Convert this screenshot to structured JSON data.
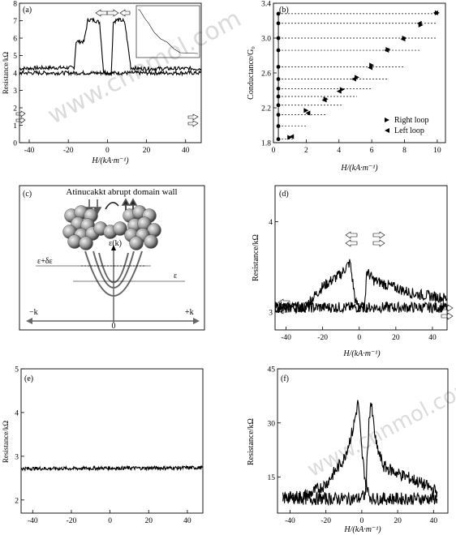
{
  "chart_data": [
    {
      "panel": "a",
      "type": "line",
      "panel_label": "(a)",
      "xlabel": "H/(kA·m⁻¹)",
      "ylabel": "Resistance/kΩ",
      "xlim": [
        -45,
        48
      ],
      "ylim": [
        0,
        8
      ],
      "xticks": [
        -40,
        -20,
        0,
        20,
        40
      ],
      "yticks": [
        0,
        1,
        2,
        3,
        4,
        5,
        6,
        7,
        8
      ],
      "series": [
        {
          "x": [
            -45,
            -30,
            -20,
            -17,
            -16,
            -12,
            -10,
            -8,
            -6,
            -4,
            -2,
            0,
            4,
            8,
            20,
            48
          ],
          "y": [
            4.25,
            4.3,
            4.3,
            4.3,
            5.8,
            5.8,
            7.05,
            7.05,
            7.0,
            6.9,
            4.1,
            4.0,
            4.0,
            4.0,
            4.0,
            4.0
          ]
        },
        {
          "x": [
            -45,
            -20,
            -10,
            -4,
            2,
            3,
            5,
            8,
            9,
            12,
            16,
            20,
            48
          ],
          "y": [
            4.0,
            4.0,
            4.0,
            4.0,
            4.0,
            6.9,
            7.05,
            7.0,
            6.8,
            4.3,
            4.25,
            4.25,
            4.25
          ]
        }
      ]
    },
    {
      "panel": "b",
      "type": "scatter",
      "panel_label": "(b)",
      "xlabel": "H/(kA·m⁻¹)",
      "ylabel": "Conductance/G₀",
      "xlim": [
        0,
        10.5
      ],
      "ylim": [
        1.8,
        3.4
      ],
      "xticks": [
        0,
        2,
        4,
        6,
        8,
        10
      ],
      "yticks": [
        1.8,
        2.2,
        2.6,
        3.0,
        3.4
      ],
      "levels": [
        1.84,
        1.99,
        2.12,
        2.23,
        2.33,
        2.42,
        2.53,
        2.67,
        2.86,
        3.0,
        3.17,
        3.28
      ],
      "series": [
        {
          "name": "Right loop",
          "x": [
            1.0,
            2.0,
            3.2,
            4.2,
            5.1,
            6.0,
            7.0,
            8.0,
            9.0,
            10.0
          ],
          "y": [
            1.86,
            2.17,
            2.3,
            2.41,
            2.55,
            2.69,
            2.87,
            3.0,
            3.15,
            3.29
          ]
        },
        {
          "name": "Left loop",
          "x": [
            1.1,
            2.1,
            3.1,
            4.0,
            4.9,
            5.9,
            6.9,
            7.9,
            8.9,
            9.9
          ],
          "y": [
            1.87,
            2.14,
            2.29,
            2.39,
            2.53,
            2.66,
            2.86,
            2.99,
            3.17,
            3.29
          ]
        }
      ],
      "legend": "bottom-right"
    },
    {
      "panel": "d",
      "type": "line",
      "panel_label": "(d)",
      "xlabel": "H/(kA·m⁻¹)",
      "ylabel": "Resistance/kΩ",
      "xlim": [
        -46,
        48
      ],
      "ylim": [
        2.8,
        4.4
      ],
      "xticks": [
        -40,
        -20,
        0,
        20,
        40
      ],
      "yticks": [
        3,
        4
      ],
      "series": [
        {
          "x": [
            -46,
            -30,
            -20,
            -10,
            -5,
            -2,
            2,
            48
          ],
          "y": [
            3.05,
            3.05,
            3.28,
            3.42,
            3.55,
            3.1,
            3.05,
            3.05
          ]
        },
        {
          "x": [
            -46,
            0,
            3,
            4,
            8,
            15,
            30,
            48
          ],
          "y": [
            3.05,
            3.05,
            3.05,
            3.45,
            3.35,
            3.3,
            3.2,
            3.15
          ]
        }
      ]
    },
    {
      "panel": "e",
      "type": "line",
      "panel_label": "(e)",
      "xlabel": "",
      "ylabel": "Resistance/kΩ",
      "xlim": [
        -46,
        48
      ],
      "ylim": [
        1.7,
        5
      ],
      "xticks": [
        -40,
        -20,
        0,
        20,
        40
      ],
      "yticks": [
        2,
        3,
        4,
        5
      ],
      "series": [
        {
          "x": [
            -46,
            -20,
            0,
            20,
            48
          ],
          "y": [
            2.72,
            2.72,
            2.73,
            2.73,
            2.74
          ]
        }
      ]
    },
    {
      "panel": "f",
      "type": "line",
      "panel_label": "(f)",
      "xlabel": "H/(kA·m⁻¹)",
      "ylabel": "Resistance/kΩ",
      "xlim": [
        -47,
        48
      ],
      "ylim": [
        5,
        45
      ],
      "xticks": [
        -40,
        -20,
        0,
        20,
        40
      ],
      "yticks": [
        15,
        30,
        45
      ],
      "series": [
        {
          "x": [
            -44,
            -30,
            -20,
            -10,
            -5,
            -2,
            0,
            2,
            4,
            6,
            10,
            20,
            30,
            42
          ],
          "y": [
            9,
            10,
            13,
            20,
            28,
            36,
            22,
            14,
            10,
            9,
            9,
            9,
            9,
            9
          ]
        },
        {
          "x": [
            -44,
            -30,
            -10,
            -2,
            2,
            4,
            5,
            8,
            12,
            20,
            30,
            42
          ],
          "y": [
            9,
            9,
            9,
            9,
            10,
            30,
            36,
            24,
            18,
            16,
            14,
            11
          ]
        }
      ]
    }
  ],
  "panels": {
    "a": {
      "label": "(a)",
      "ylabel": "Resistance/kΩ",
      "xlabel": "H/(kA·m⁻¹)"
    },
    "b": {
      "label": "(b)",
      "ylabel": "Conductance/G₀",
      "xlabel": "H/(kA·m⁻¹)",
      "legend_right": "Right loop",
      "legend_left": "Left loop"
    },
    "c": {
      "label": "(c)",
      "title": "Atinucakkt abrupt domain wall",
      "eps_k": "ε(k)",
      "eps_de": "ε+δε",
      "eps": "ε",
      "k_neg": "−k",
      "k_pos": "+k",
      "zero": "0"
    },
    "d": {
      "label": "(d)",
      "ylabel": "Resistance/kΩ",
      "xlabel": "H/(kA·m⁻¹)"
    },
    "e": {
      "label": "(e)",
      "ylabel": "Resistance/kΩ"
    },
    "f": {
      "label": "(f)",
      "ylabel": "Resistance/kΩ",
      "xlabel": "H/(kA·m⁻¹)"
    }
  },
  "watermark": "www.cnnmol.com",
  "colors": {
    "ink": "#000000",
    "sphere": "#9a9a9a",
    "watermark": "#bfbfbf"
  }
}
